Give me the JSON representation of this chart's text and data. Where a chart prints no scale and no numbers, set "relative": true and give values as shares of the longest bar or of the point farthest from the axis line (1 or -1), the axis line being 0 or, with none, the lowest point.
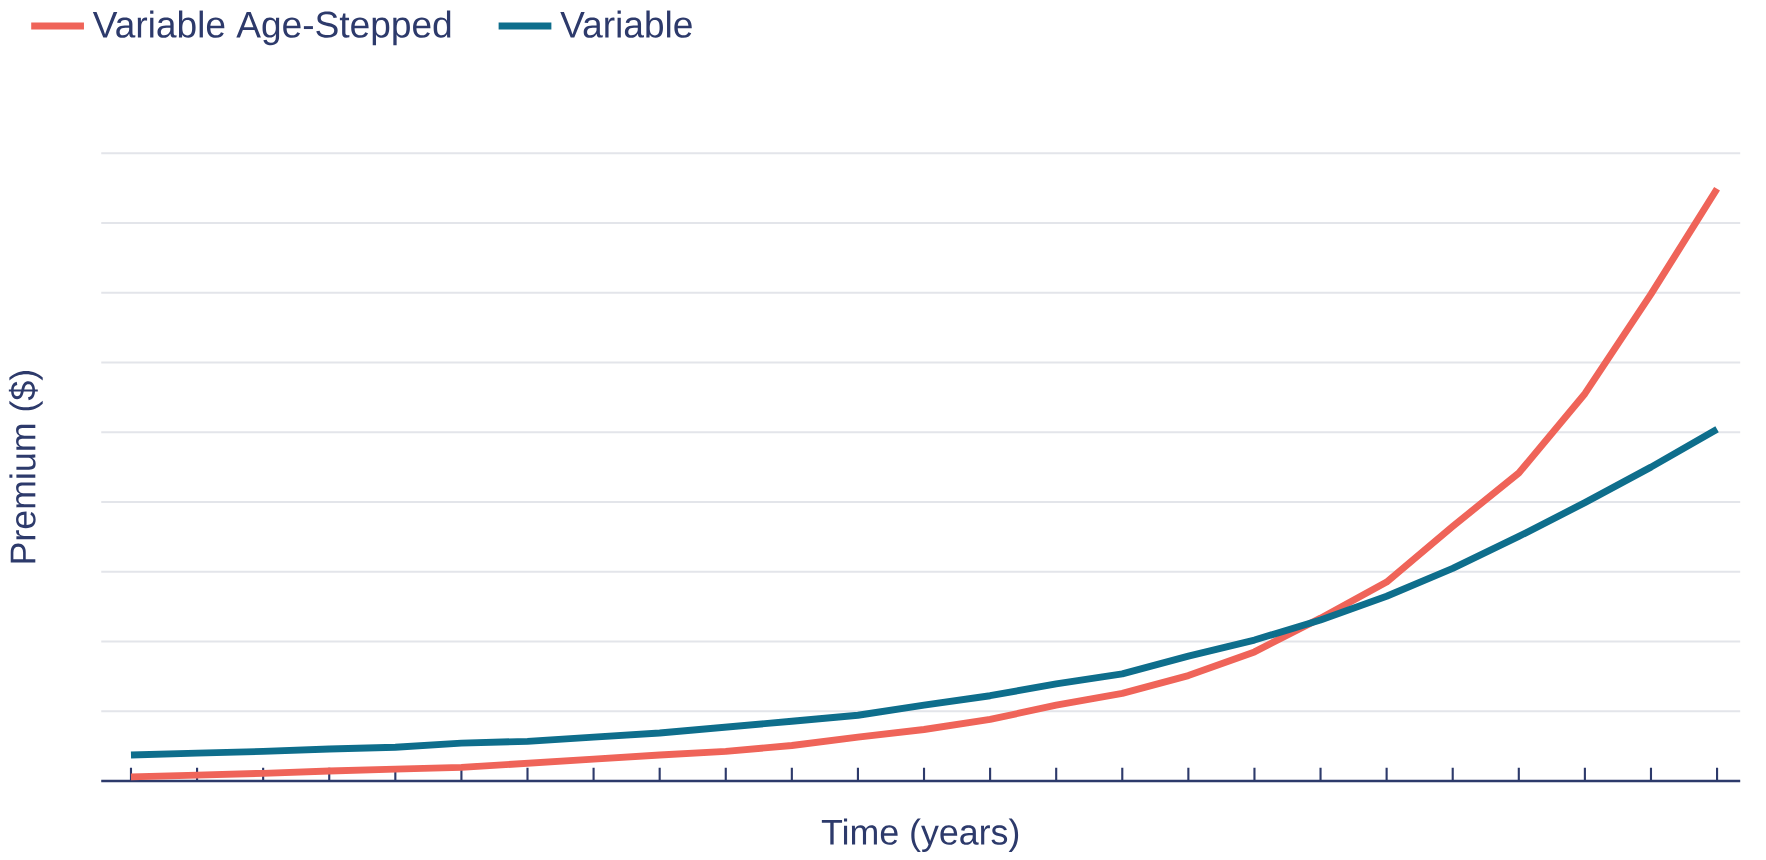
{
  "chart_data": {
    "type": "line",
    "relative": true,
    "xlabel": "Time (years)",
    "ylabel": "Premium ($)",
    "legend": "top left",
    "grid": "y",
    "marker": "none",
    "line_style": "solid",
    "categories": [
      null,
      null,
      null,
      null,
      null,
      null,
      null,
      null,
      null,
      null,
      null,
      null,
      null,
      null,
      null,
      null,
      null,
      null,
      null,
      null,
      null,
      null,
      null,
      null,
      null
    ],
    "series": [
      {
        "name": "Variable Age-Stepped",
        "color": "#ef6459",
        "values": [
          0.007,
          0.01,
          0.013,
          0.017,
          0.02,
          0.023,
          0.03,
          0.037,
          0.044,
          0.05,
          0.06,
          0.074,
          0.087,
          0.104,
          0.128,
          0.148,
          0.178,
          0.218,
          0.275,
          0.336,
          0.43,
          0.52,
          0.654,
          0.822,
          1
        ]
      },
      {
        "name": "Variable",
        "color": "#0e6e8c",
        "values": [
          0.044,
          0.047,
          0.05,
          0.054,
          0.057,
          0.064,
          0.067,
          0.074,
          0.081,
          0.091,
          0.101,
          0.111,
          0.128,
          0.144,
          0.164,
          0.181,
          0.211,
          0.238,
          0.272,
          0.312,
          0.359,
          0.413,
          0.47,
          0.53,
          0.594
        ]
      }
    ]
  }
}
